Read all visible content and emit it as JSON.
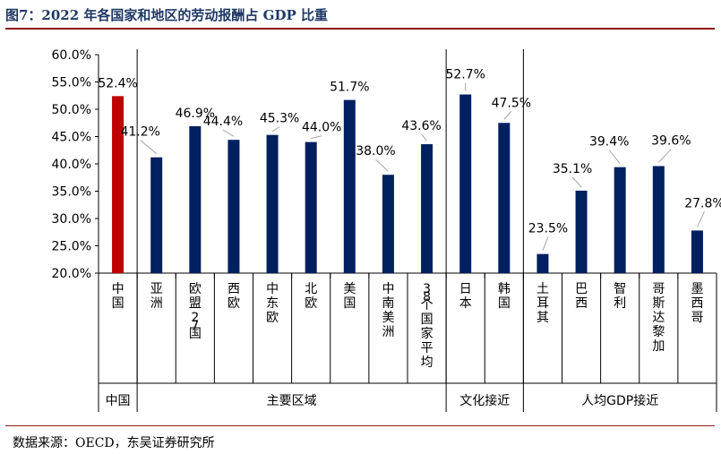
{
  "title": "图7：2022 年各国家和地区的劳动报酬占 GDP 比重",
  "source": "数据来源：OECD，东吴证券研究所",
  "colors": {
    "highlight": "#c00000",
    "bar": "#002060",
    "leader": "#a6a6a6",
    "title": "#1f3864",
    "rule": "#8b1a1a"
  },
  "chart_data": {
    "type": "bar",
    "title": "",
    "xlabel": "",
    "ylabel": "",
    "ylim": [
      20,
      60
    ],
    "yticks": [
      "20.0%",
      "25.0%",
      "30.0%",
      "35.0%",
      "40.0%",
      "45.0%",
      "50.0%",
      "55.0%",
      "60.0%"
    ],
    "grid": false,
    "legend": "none",
    "categories": [
      "中国",
      "亚洲",
      "欧盟27国",
      "西欧",
      "中东欧",
      "北欧",
      "美国",
      "中南美洲",
      "38个国家平均",
      "日本",
      "韩国",
      "土耳其",
      "巴西",
      "智利",
      "哥斯达黎加",
      "墨西哥"
    ],
    "values": [
      52.4,
      41.2,
      46.9,
      44.4,
      45.3,
      44.0,
      51.7,
      38.0,
      43.6,
      52.7,
      47.5,
      23.5,
      35.1,
      39.4,
      39.6,
      27.8
    ],
    "labels": [
      "52.4%",
      "41.2%",
      "46.9%",
      "44.4%",
      "45.3%",
      "44.0%",
      "51.7%",
      "38.0%",
      "43.6%",
      "52.7%",
      "47.5%",
      "23.5%",
      "35.1%",
      "39.4%",
      "39.6%",
      "27.8%"
    ],
    "highlight_index": 0,
    "groups": [
      {
        "name": "中国",
        "start": 0,
        "end": 0
      },
      {
        "name": "主要区域",
        "start": 1,
        "end": 8
      },
      {
        "name": "文化接近",
        "start": 9,
        "end": 10
      },
      {
        "name": "人均GDP接近",
        "start": 11,
        "end": 15
      }
    ]
  }
}
